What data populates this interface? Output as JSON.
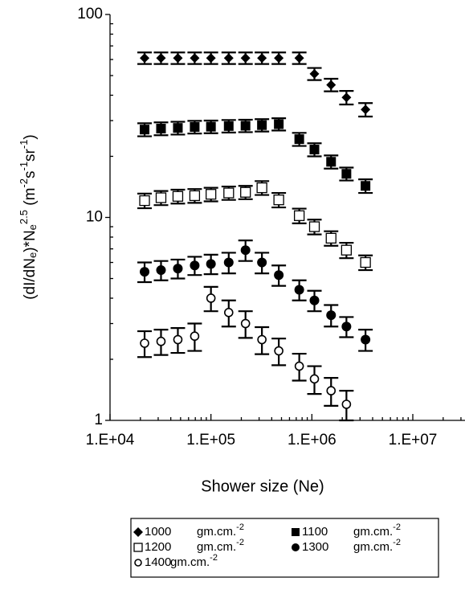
{
  "chart_data": {
    "type": "scatter",
    "xlabel": "Shower size (Ne)",
    "ylabel": [
      "(dI/dN",
      "e",
      ")*N",
      "e",
      "2.5",
      " (m",
      "-2",
      "s",
      "-1",
      "sr",
      "-1",
      ")"
    ],
    "xlog": true,
    "ylog": true,
    "xlim": [
      10000,
      10000000
    ],
    "ylim": [
      1,
      100
    ],
    "xticks": [
      {
        "value": 10000,
        "label": "1.E+04"
      },
      {
        "value": 100000,
        "label": "1.E+05"
      },
      {
        "value": 1000000,
        "label": "1.E+06"
      },
      {
        "value": 10000000,
        "label": "1.E+07"
      }
    ],
    "yticks": [
      1,
      10,
      100
    ],
    "x": [
      22000,
      32000,
      47000,
      69000,
      100000,
      150000,
      220000,
      320000,
      470000,
      750000,
      1060000,
      1550000,
      2200000,
      3400000
    ],
    "legend_unit": [
      "gm.cm.",
      "-2"
    ],
    "series": [
      {
        "name": "1000",
        "marker": "diamond",
        "color": "#000",
        "values": [
          61,
          61,
          61,
          61,
          61,
          61,
          61,
          61,
          61,
          61,
          51,
          45,
          39,
          34
        ],
        "errors": [
          4,
          4,
          4,
          4,
          4,
          4,
          4,
          4,
          4,
          4,
          3.5,
          3.2,
          3,
          2.6
        ]
      },
      {
        "name": "1100",
        "marker": "square",
        "color": "#000",
        "values": [
          27.1,
          27.4,
          27.6,
          27.9,
          28,
          28.2,
          28.3,
          28.5,
          28.8,
          24.3,
          21.6,
          18.8,
          16.4,
          14.3
        ],
        "errors": [
          2,
          2,
          2,
          2,
          2,
          2,
          2,
          2,
          2,
          1.8,
          1.6,
          1.4,
          1.2,
          1.1
        ]
      },
      {
        "name": "1200",
        "marker": "open-square",
        "color": "#000",
        "values": [
          12.1,
          12.5,
          12.7,
          12.8,
          13,
          13.2,
          13.3,
          14,
          12.2,
          10.2,
          9,
          7.9,
          6.9,
          6
        ],
        "errors": [
          1,
          1,
          1,
          1,
          1,
          1,
          1,
          1.1,
          1,
          0.85,
          0.75,
          0.65,
          0.6,
          0.5
        ]
      },
      {
        "name": "1300",
        "marker": "circle",
        "color": "#000",
        "values": [
          5.4,
          5.5,
          5.6,
          5.8,
          5.9,
          6,
          6.9,
          6,
          5.2,
          4.4,
          3.9,
          3.3,
          2.9,
          2.5
        ],
        "errors": [
          0.6,
          0.6,
          0.6,
          0.6,
          0.65,
          0.7,
          0.8,
          0.7,
          0.6,
          0.5,
          0.45,
          0.4,
          0.33,
          0.3
        ]
      },
      {
        "name": "1400",
        "marker": "open-circle",
        "color": "#000",
        "values": [
          2.4,
          2.45,
          2.5,
          2.6,
          4,
          3.4,
          3,
          2.5,
          2.2,
          1.85,
          1.6,
          1.4,
          1.2,
          null
        ],
        "errors": [
          0.35,
          0.35,
          0.35,
          0.4,
          0.55,
          0.5,
          0.45,
          0.38,
          0.33,
          0.28,
          0.25,
          0.22,
          0.2,
          null
        ]
      }
    ]
  }
}
